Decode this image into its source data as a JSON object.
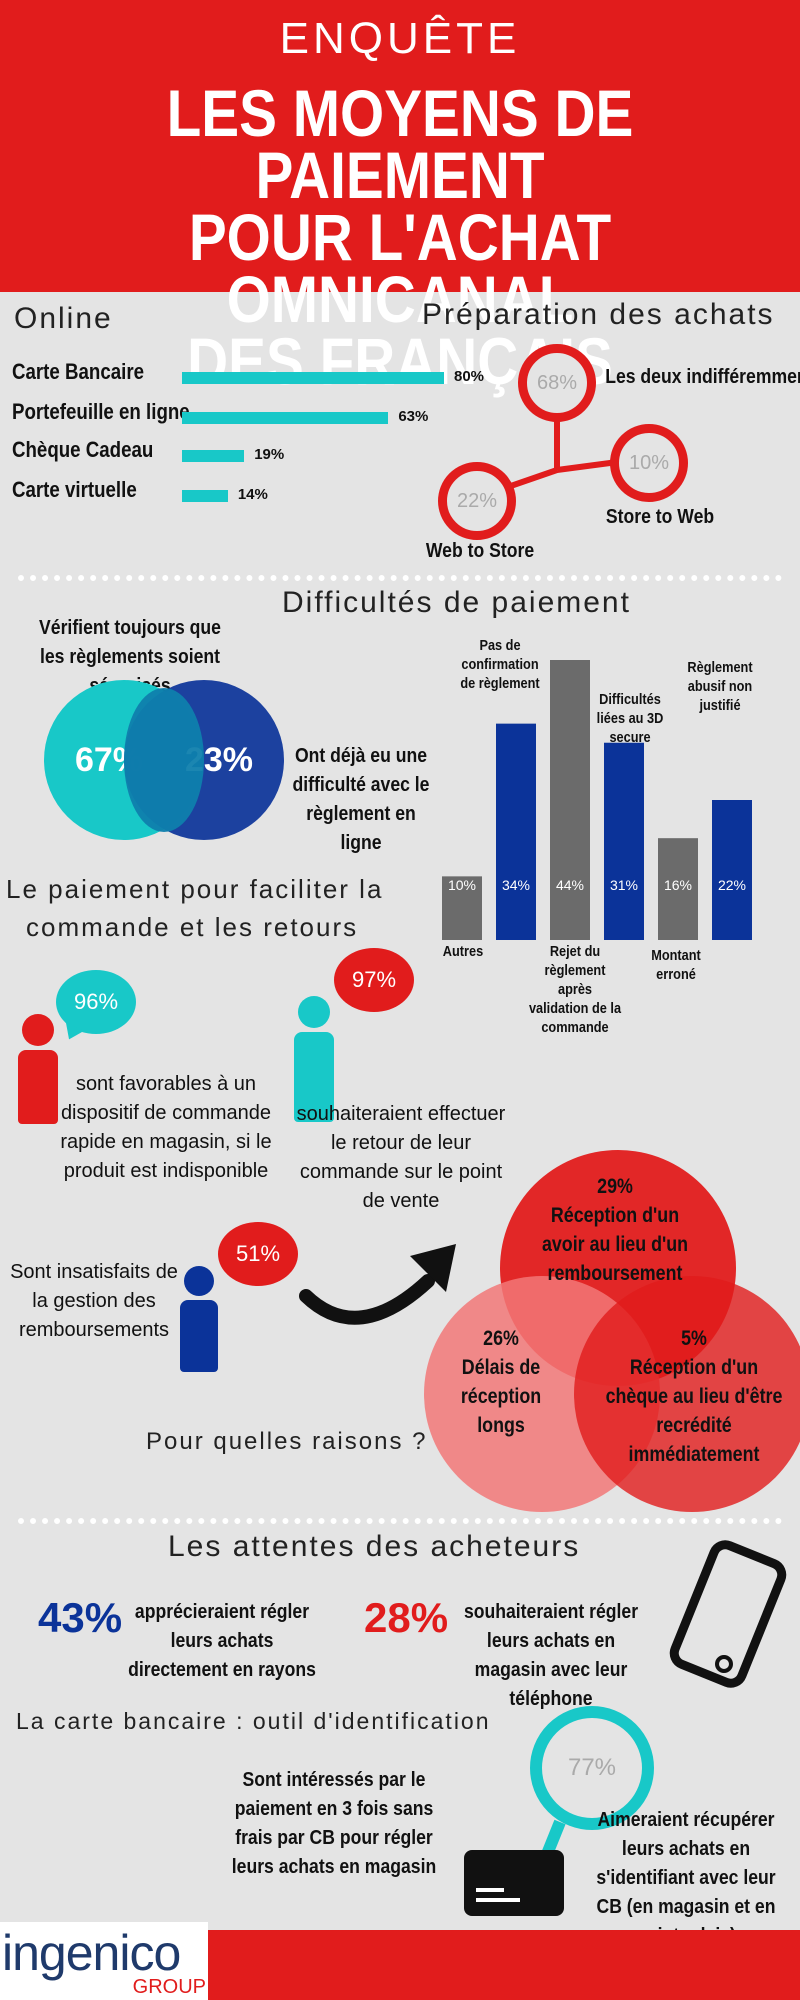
{
  "header": {
    "kicker": "ENQUÊTE",
    "title_lines": [
      "LES MOYENS DE PAIEMENT",
      "POUR L'ACHAT OMNICANAL",
      "DES FRANÇAIS"
    ]
  },
  "online": {
    "title": "Online",
    "items": [
      {
        "label": "Carte Bancaire",
        "value": 80,
        "display": "80%"
      },
      {
        "label": "Portefeuille en ligne",
        "value": 63,
        "display": "63%"
      },
      {
        "label": "Chèque Cadeau",
        "value": 19,
        "display": "19%"
      },
      {
        "label": "Carte virtuelle",
        "value": 14,
        "display": "14%"
      }
    ]
  },
  "preparation": {
    "title": "Préparation des achats",
    "nodes": [
      {
        "pct": "68%",
        "label": "Les deux indifféremment"
      },
      {
        "pct": "10%",
        "label": "Store to Web"
      },
      {
        "pct": "22%",
        "label": "Web to Store"
      }
    ]
  },
  "difficultes": {
    "title": "Difficultés de paiement",
    "verifient": "Vérifient toujours que les règlements soient sécurisés",
    "ont_deja": "Ont déjà eu une difficulté avec le règlement en ligne",
    "venn_left": "67%",
    "venn_right": "23%"
  },
  "chart_data": {
    "type": "bar",
    "categories": [
      "Autres",
      "Pas de confirmation de règlement",
      "Rejet du règlement après validation de la commande",
      "Difficultés liées au 3D secure",
      "Montant erroné",
      "Règlement abusif non justifié"
    ],
    "values": [
      10,
      34,
      44,
      31,
      16,
      22
    ],
    "labels": [
      "10%",
      "34%",
      "44%",
      "31%",
      "16%",
      "22%"
    ],
    "colors": [
      "#6b6b6b",
      "#0b3399",
      "#6b6b6b",
      "#0b3399",
      "#6b6b6b",
      "#0b3399"
    ]
  },
  "chart_labels": {
    "autres": "Autres",
    "pas_de": "Pas de confirmation de règlement",
    "rejet": "Rejet du règlement après validation de la commande",
    "difficultes_3d": "Difficultés liées au 3D secure",
    "montant": "Montant erroné",
    "abusif": "Règlement abusif non justifié"
  },
  "commande": {
    "title_l1": "Le paiement pour faciliter la",
    "title_l2": "commande et les retours",
    "p1_pct": "96%",
    "p1_text": "sont favorables à un dispositif de commande rapide en magasin, si le produit est indisponible",
    "p2_pct": "97%",
    "p2_text": "souhaiteraient effectuer le retour de leur commande sur le point de vente",
    "p3_pct": "51%",
    "p3_text": "Sont insatisfaits de la gestion des remboursements",
    "question": "Pour quelles raisons ?"
  },
  "raisons": [
    {
      "pct": "29%",
      "label": "Réception d'un avoir au lieu d'un remboursement"
    },
    {
      "pct": "26%",
      "label": "Délais de réception longs"
    },
    {
      "pct": "5%",
      "label": "Réception d'un chèque au lieu d'être recrédité immédiatement"
    }
  ],
  "attentes": {
    "title": "Les attentes des acheteurs",
    "a1_pct": "43%",
    "a1_text": "apprécieraient régler leurs achats directement en rayons",
    "a2_pct": "28%",
    "a2_text": "souhaiteraient régler leurs achats en magasin avec leur téléphone"
  },
  "carte": {
    "title": "La carte bancaire : outil d'identification",
    "text1": "Sont intéressés par le paiement en 3 fois sans frais par CB pour régler leurs achats en magasin",
    "pct": "77%",
    "text2": "Aimeraient récupérer leurs achats en s'identifiant avec leur CB (en magasin et en point relais)"
  },
  "brand": {
    "name": "ingenico",
    "group": "GROUP"
  },
  "colors": {
    "red": "#e11c1c",
    "teal": "#18c8c8",
    "navy": "#0b3399",
    "grey": "#6b6b6b"
  }
}
